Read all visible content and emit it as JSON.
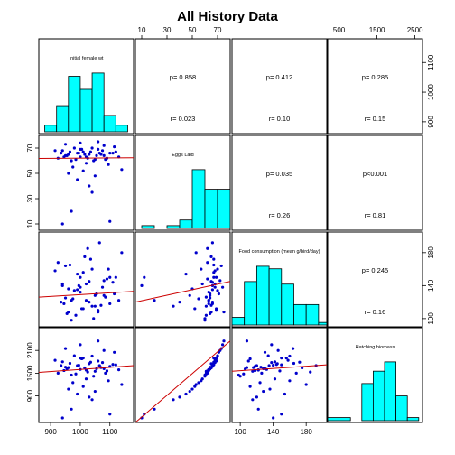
{
  "title": "All History Data",
  "colors": {
    "hist_fill": "#00FFFF",
    "point": "#0000CC",
    "fit_line": "#CC0000",
    "frame": "#000000"
  },
  "chart_data": {
    "type": "scatter",
    "subtype": "pairs-matrix",
    "title": "All History Data",
    "variables": [
      {
        "name": "Initial female wt",
        "range": [
          860,
          1180
        ],
        "ticks": [
          900,
          1000,
          1100
        ],
        "axis_side": "bottom"
      },
      {
        "name": "Eggs Laid",
        "range": [
          5,
          80
        ],
        "ticks": [
          10,
          30,
          50,
          70
        ],
        "axis_side": "top"
      },
      {
        "name": "Food consumption (mean g/bird/day)",
        "range": [
          90,
          205
        ],
        "ticks": [
          100,
          140,
          180
        ],
        "axis_side": "bottom"
      },
      {
        "name": "Hatching biomass",
        "range": [
          200,
          2700
        ],
        "ticks": [
          500,
          1500,
          2500
        ],
        "axis_side": "top"
      }
    ],
    "left_axes": [
      {
        "row": 1,
        "ticks": [
          10,
          30,
          50,
          70
        ]
      },
      {
        "row": 3,
        "ticks": [
          900,
          1500,
          2100
        ]
      }
    ],
    "right_axes": [
      {
        "row": 0,
        "ticks": [
          900,
          1000,
          1100
        ]
      },
      {
        "row": 2,
        "ticks": [
          100,
          140,
          180
        ]
      }
    ],
    "histograms": [
      {
        "var": 0,
        "bins": [
          880,
          920,
          960,
          1000,
          1040,
          1080,
          1120,
          1160
        ],
        "counts": [
          2,
          8,
          17,
          13,
          18,
          5,
          2
        ]
      },
      {
        "var": 1,
        "bins": [
          10,
          20,
          30,
          40,
          50,
          60,
          70,
          80
        ],
        "counts": [
          1,
          0,
          1,
          3,
          21,
          14,
          14
        ]
      },
      {
        "var": 2,
        "bins": [
          90,
          105,
          120,
          135,
          150,
          165,
          180,
          195,
          205
        ],
        "counts": [
          3,
          17,
          23,
          22,
          16,
          8,
          8,
          1
        ]
      },
      {
        "var": 3,
        "bins": [
          200,
          500,
          800,
          1100,
          1400,
          1700,
          2000,
          2300,
          2600
        ],
        "counts": [
          1,
          1,
          0,
          12,
          16,
          19,
          8,
          1
        ]
      }
    ],
    "correlations": [
      {
        "row": 0,
        "col": 1,
        "p": "p= 0.858",
        "r": "r= 0.023"
      },
      {
        "row": 0,
        "col": 2,
        "p": "p= 0.412",
        "r": "r= 0.10"
      },
      {
        "row": 0,
        "col": 3,
        "p": "p= 0.285",
        "r": "r= 0.15"
      },
      {
        "row": 1,
        "col": 2,
        "p": "p= 0.035",
        "r": "r= 0.26"
      },
      {
        "row": 1,
        "col": 3,
        "p": "p<0.001",
        "r": "r= 0.81"
      },
      {
        "row": 2,
        "col": 3,
        "p": "p= 0.245",
        "r": "r= 0.16"
      }
    ],
    "records": [
      [
        960,
        65,
        108,
        1650
      ],
      [
        1020,
        63,
        122,
        1580
      ],
      [
        990,
        66,
        135,
        1700
      ],
      [
        1050,
        61,
        115,
        1550
      ],
      [
        940,
        68,
        142,
        1800
      ],
      [
        1080,
        64,
        128,
        1620
      ],
      [
        1010,
        67,
        156,
        1900
      ],
      [
        970,
        60,
        98,
        1450
      ],
      [
        1100,
        66,
        118,
        1680
      ],
      [
        1030,
        65,
        145,
        1750
      ],
      [
        925,
        62,
        168,
        1500
      ],
      [
        1060,
        69,
        110,
        1820
      ],
      [
        1000,
        63,
        132,
        1600
      ],
      [
        1120,
        67,
        150,
        1720
      ],
      [
        950,
        64,
        125,
        1660
      ],
      [
        1040,
        70,
        160,
        1950
      ],
      [
        985,
        61,
        104,
        1480
      ],
      [
        1075,
        68,
        138,
        1780
      ],
      [
        1015,
        65,
        175,
        1640
      ],
      [
        935,
        66,
        120,
        1700
      ],
      [
        1090,
        62,
        148,
        1560
      ],
      [
        1005,
        69,
        112,
        1880
      ],
      [
        1055,
        64,
        130,
        1620
      ],
      [
        965,
        67,
        165,
        1760
      ],
      [
        1130,
        63,
        122,
        1590
      ],
      [
        995,
        66,
        140,
        1710
      ],
      [
        1045,
        60,
        100,
        1420
      ],
      [
        915,
        68,
        158,
        1840
      ],
      [
        1070,
        65,
        116,
        1650
      ],
      [
        1025,
        62,
        185,
        1530
      ],
      [
        980,
        70,
        134,
        1960
      ],
      [
        1110,
        66,
        144,
        1730
      ],
      [
        955,
        64,
        106,
        1610
      ],
      [
        1035,
        67,
        172,
        1790
      ],
      [
        1085,
        61,
        126,
        1500
      ],
      [
        1000,
        69,
        150,
        1900
      ],
      [
        945,
        63,
        118,
        1570
      ],
      [
        1065,
        66,
        192,
        1700
      ],
      [
        1020,
        58,
        142,
        1350
      ],
      [
        975,
        55,
        124,
        1250
      ],
      [
        1095,
        57,
        160,
        1300
      ],
      [
        1010,
        52,
        112,
        1150
      ],
      [
        960,
        50,
        136,
        1080
      ],
      [
        1050,
        48,
        128,
        1020
      ],
      [
        1140,
        53,
        180,
        1200
      ],
      [
        990,
        45,
        154,
        950
      ],
      [
        1030,
        40,
        120,
        870
      ],
      [
        1080,
        72,
        146,
        2100
      ],
      [
        1000,
        74,
        138,
        2250
      ],
      [
        950,
        73,
        164,
        2150
      ],
      [
        1060,
        75,
        108,
        2350
      ],
      [
        1115,
        71,
        130,
        2050
      ],
      [
        1040,
        35,
        115,
        800
      ],
      [
        970,
        20,
        122,
        550
      ],
      [
        1100,
        12,
        150,
        420
      ],
      [
        940,
        10,
        140,
        320
      ]
    ],
    "fit_lines": [
      {
        "row": 1,
        "col": 0,
        "x": [
          860,
          1180
        ],
        "y": [
          61.8,
          62.3
        ]
      },
      {
        "row": 2,
        "col": 0,
        "x": [
          860,
          1180
        ],
        "y": [
          126,
          133
        ]
      },
      {
        "row": 2,
        "col": 1,
        "x": [
          5,
          80
        ],
        "y": [
          120,
          145
        ]
      },
      {
        "row": 3,
        "col": 0,
        "x": [
          860,
          1180
        ],
        "y": [
          1520,
          1700
        ]
      },
      {
        "row": 3,
        "col": 1,
        "x": [
          5,
          80
        ],
        "y": [
          200,
          2350
        ]
      },
      {
        "row": 3,
        "col": 2,
        "x": [
          90,
          205
        ],
        "y": [
          1550,
          1720
        ]
      }
    ]
  }
}
